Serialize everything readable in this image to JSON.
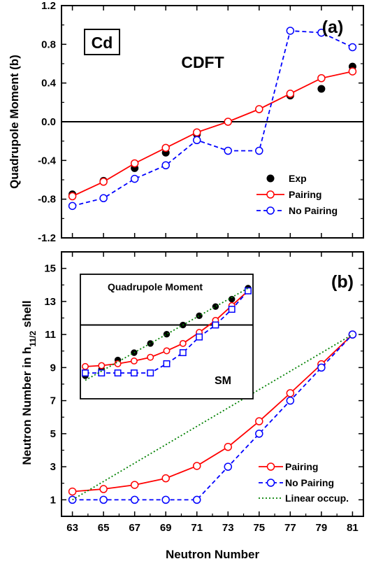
{
  "chart_data": [
    {
      "panel": "(a)",
      "type": "scatter",
      "title": "CDFT",
      "element_label": "Cd",
      "panel_label": "(a)",
      "ylabel": "Quadrupole Moment (b)",
      "ylim": [
        -1.2,
        1.2
      ],
      "yticks": [
        "1.2",
        "0.8",
        "0.4",
        "0.0",
        "-0.4",
        "-0.8",
        "-1.2"
      ],
      "xlim": [
        62.3,
        81.7
      ],
      "reference_line_y": 0.0,
      "series": [
        {
          "name": "Exp",
          "style": "filled-circle",
          "color": "#000000",
          "x": [
            63,
            65,
            67,
            69,
            71,
            73,
            75,
            77,
            79,
            81
          ],
          "y": [
            -0.75,
            -0.61,
            -0.48,
            -0.32,
            -0.13,
            0.0,
            0.13,
            0.27,
            0.34,
            0.57
          ]
        },
        {
          "name": "Pairing",
          "style": "solid-open-circle",
          "color": "#ff0000",
          "x": [
            63,
            65,
            67,
            69,
            71,
            73,
            75,
            77,
            79,
            81
          ],
          "y": [
            -0.77,
            -0.62,
            -0.43,
            -0.27,
            -0.11,
            0.0,
            0.13,
            0.29,
            0.45,
            0.52
          ]
        },
        {
          "name": "No Pairing",
          "style": "dashed-open-circle",
          "color": "#0000ff",
          "x": [
            63,
            65,
            67,
            69,
            71,
            73,
            75,
            77,
            79,
            81
          ],
          "y": [
            -0.87,
            -0.79,
            -0.59,
            -0.45,
            -0.19,
            -0.3,
            -0.3,
            0.94,
            0.92,
            0.77
          ]
        }
      ],
      "legend": {
        "position": "bottom-right",
        "entries": [
          "Exp",
          "Pairing",
          "No Pairing"
        ]
      }
    },
    {
      "panel": "(b)",
      "type": "line",
      "panel_label": "(b)",
      "xlabel": "Neutron Number",
      "ylabel_main": "Neutron  Number in h",
      "ylabel_sub": "11/2",
      "ylabel_tail": " shell",
      "ylim": [
        0,
        16
      ],
      "yticks": [
        "1",
        "3",
        "5",
        "7",
        "9",
        "11",
        "13",
        "15"
      ],
      "xlim": [
        62.3,
        81.7
      ],
      "xticks": [
        "63",
        "65",
        "67",
        "69",
        "71",
        "73",
        "75",
        "77",
        "79",
        "81"
      ],
      "series": [
        {
          "name": "Pairing",
          "style": "solid-open-circle",
          "color": "#ff0000",
          "x": [
            63,
            65,
            67,
            69,
            71,
            73,
            75,
            77,
            79,
            81
          ],
          "y": [
            1.5,
            1.65,
            1.9,
            2.3,
            3.05,
            4.2,
            5.75,
            7.45,
            9.2,
            11.0
          ]
        },
        {
          "name": "No Pairing",
          "style": "dashed-open-circle",
          "color": "#0000ff",
          "x": [
            63,
            65,
            67,
            69,
            71,
            73,
            75,
            77,
            79,
            81
          ],
          "y": [
            1.0,
            1.0,
            1.0,
            1.0,
            1.0,
            3.0,
            5.0,
            7.0,
            9.0,
            11.0
          ]
        },
        {
          "name": "Linear occup.",
          "style": "dotted",
          "color": "#008000",
          "x": [
            63,
            81
          ],
          "y": [
            1.0,
            11.0
          ]
        }
      ],
      "legend": {
        "position": "bottom-right",
        "entries": [
          "Pairing",
          "No Pairing",
          "Linear occup."
        ]
      },
      "inset": {
        "title": "Quadrupole Moment",
        "label": "SM",
        "x_range": [
          63,
          73
        ],
        "series": [
          {
            "name": "Exp",
            "style": "filled-circle",
            "color": "#000000",
            "x": [
              63,
              64,
              65,
              66,
              67,
              68,
              69,
              70,
              71,
              72,
              73
            ],
            "y": [
              -0.55,
              -0.48,
              -0.38,
              -0.3,
              -0.2,
              -0.1,
              0.0,
              0.1,
              0.2,
              0.28,
              0.4
            ]
          },
          {
            "name": "Pairing",
            "style": "solid-open-circle",
            "color": "#ff0000",
            "x": [
              63,
              64,
              65,
              66,
              67,
              68,
              69,
              70,
              71,
              72,
              73
            ],
            "y": [
              -0.45,
              -0.44,
              -0.42,
              -0.39,
              -0.35,
              -0.28,
              -0.2,
              -0.08,
              0.05,
              0.21,
              0.37
            ]
          },
          {
            "name": "No Pairing",
            "style": "dashed-open-square",
            "color": "#0000ff",
            "x": [
              63,
              64,
              65,
              66,
              67,
              68,
              69,
              70,
              71,
              72,
              73
            ],
            "y": [
              -0.52,
              -0.52,
              -0.52,
              -0.52,
              -0.52,
              -0.42,
              -0.3,
              -0.13,
              0.0,
              0.17,
              0.37
            ]
          },
          {
            "name": "Linear occup.",
            "style": "dotted",
            "color": "#008000",
            "x": [
              63,
              73
            ],
            "y": [
              -0.6,
              0.4
            ]
          }
        ]
      }
    }
  ]
}
